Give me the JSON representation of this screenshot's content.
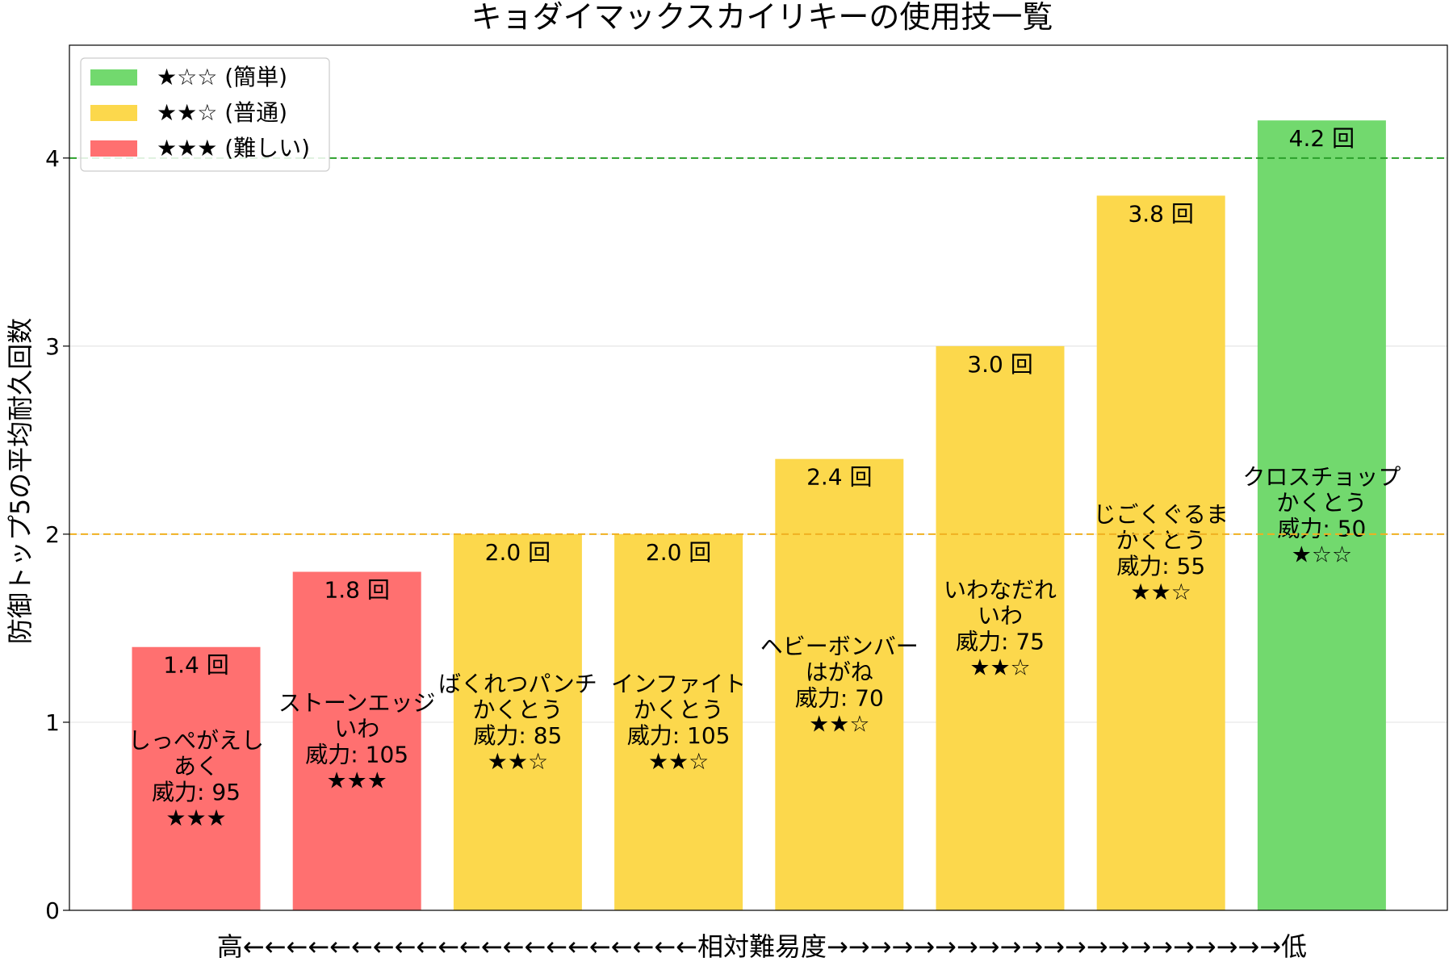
{
  "chart_data": {
    "type": "bar",
    "title": "キョダイマックスカイリキーの使用技一覧",
    "ylabel": "防御トップ5の平均耐久回数",
    "xlabel": "高←←←←←←←←←←←←←←←←←←←←←相対難易度→→→→→→→→→→→→→→→→→→→→→低",
    "ylim": [
      0,
      4.6
    ],
    "yticks": [
      0,
      1,
      2,
      3,
      4
    ],
    "grid": "horizontal",
    "legend_placement": "top-left",
    "value_suffix": " 回",
    "reference_lines": [
      {
        "y": 4,
        "color": "#2ca02c",
        "style": "dashed"
      },
      {
        "y": 2,
        "color": "#f0b020",
        "style": "dashed"
      }
    ],
    "legend": [
      {
        "label": "★☆☆ (簡単)",
        "color": "#72d96e"
      },
      {
        "label": "★★☆ (普通)",
        "color": "#fcd84c"
      },
      {
        "label": "★★★ (難しい)",
        "color": "#ff7070"
      }
    ],
    "bars": [
      {
        "value": 1.4,
        "value_label": "1.4 回",
        "lines": [
          "しっぺがえし",
          "あく",
          "威力: 95",
          "★★★"
        ],
        "color": "#ff7070"
      },
      {
        "value": 1.8,
        "value_label": "1.8 回",
        "lines": [
          "ストーンエッジ",
          "いわ",
          "威力: 105",
          "★★★"
        ],
        "color": "#ff7070"
      },
      {
        "value": 2.0,
        "value_label": "2.0 回",
        "lines": [
          "ばくれつパンチ",
          "かくとう",
          "威力: 85",
          "★★☆"
        ],
        "color": "#fcd84c"
      },
      {
        "value": 2.0,
        "value_label": "2.0 回",
        "lines": [
          "インファイト",
          "かくとう",
          "威力: 105",
          "★★☆"
        ],
        "color": "#fcd84c"
      },
      {
        "value": 2.4,
        "value_label": "2.4 回",
        "lines": [
          "ヘビーボンバー",
          "はがね",
          "威力: 70",
          "★★☆"
        ],
        "color": "#fcd84c"
      },
      {
        "value": 3.0,
        "value_label": "3.0 回",
        "lines": [
          "いわなだれ",
          "いわ",
          "威力: 75",
          "★★☆"
        ],
        "color": "#fcd84c"
      },
      {
        "value": 3.8,
        "value_label": "3.8 回",
        "lines": [
          "じごくぐるま",
          "かくとう",
          "威力: 55",
          "★★☆"
        ],
        "color": "#fcd84c"
      },
      {
        "value": 4.2,
        "value_label": "4.2 回",
        "lines": [
          "クロスチョップ",
          "かくとう",
          "威力: 50",
          "★☆☆"
        ],
        "color": "#72d96e"
      }
    ]
  }
}
